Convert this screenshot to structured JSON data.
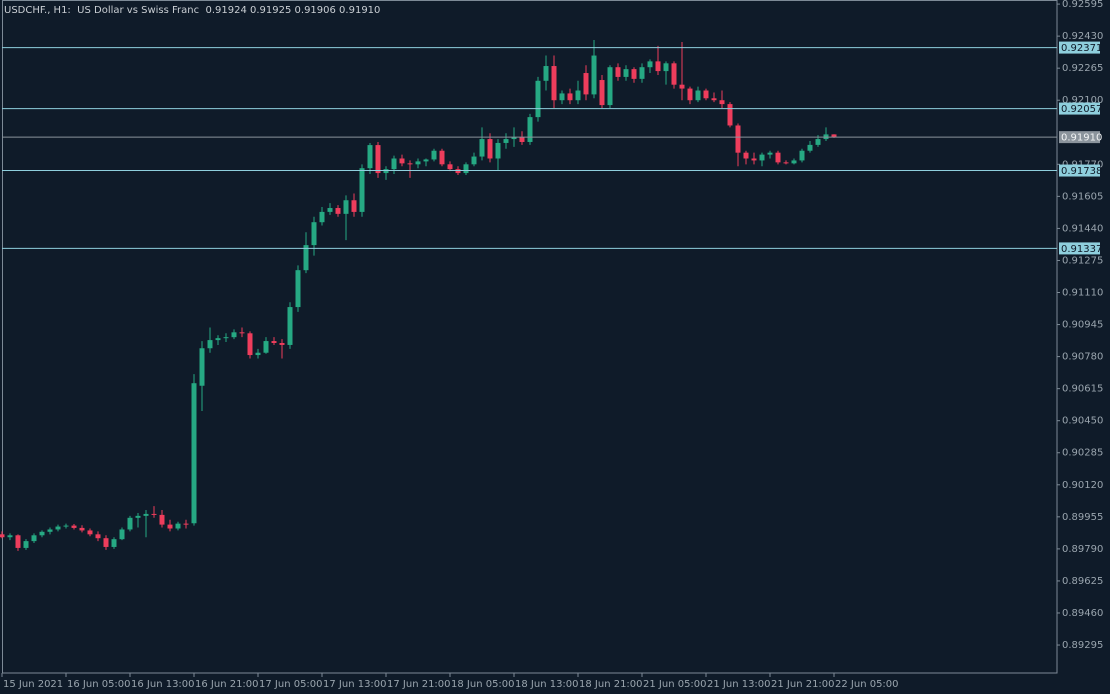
{
  "chart_data": {
    "type": "candlestick",
    "title": "USDCHF., H1:  US Dollar vs Swiss Franc  0.91924 0.91925 0.91906 0.91910",
    "categories": [
      "15 Jun 2021",
      null,
      null,
      null,
      null,
      null,
      null,
      null,
      "16 Jun 05:00",
      null,
      null,
      null,
      null,
      null,
      null,
      null,
      "16 Jun 13:00",
      null,
      null,
      null,
      null,
      null,
      null,
      null,
      "16 Jun 21:00",
      null,
      null,
      null,
      null,
      null,
      null,
      null,
      "17 Jun 05:00",
      null,
      null,
      null,
      null,
      null,
      null,
      null,
      "17 Jun 13:00",
      null,
      null,
      null,
      null,
      null,
      null,
      null,
      "17 Jun 21:00",
      null,
      null,
      null,
      null,
      null,
      null,
      null,
      "18 Jun 05:00",
      null,
      null,
      null,
      null,
      null,
      null,
      null,
      "18 Jun 13:00",
      null,
      null,
      null,
      null,
      null,
      null,
      null,
      "18 Jun 21:00",
      null,
      null,
      null,
      null,
      null,
      null,
      null,
      "21 Jun 05:00",
      null,
      null,
      null,
      null,
      null,
      null,
      null,
      "21 Jun 13:00",
      null,
      null,
      null,
      null,
      null,
      null,
      null,
      "21 Jun 21:00",
      null,
      null,
      null,
      null,
      null,
      null,
      null,
      "22 Jun 05:00"
    ],
    "open": [
      0.89865,
      0.8985,
      0.8986,
      0.89795,
      0.8983,
      0.8986,
      0.89878,
      0.8989,
      0.89905,
      0.8991,
      0.89898,
      0.89885,
      0.89865,
      0.89845,
      0.898,
      0.8984,
      0.8989,
      0.8995,
      0.8996,
      0.8997,
      0.89965,
      0.89915,
      0.89895,
      0.8992,
      0.89922,
      0.9063,
      0.90823,
      0.90865,
      0.90875,
      0.9088,
      0.90905,
      0.909,
      0.90788,
      0.908,
      0.9086,
      0.9085,
      0.9084,
      0.91035,
      0.91225,
      0.91354,
      0.91472,
      0.91525,
      0.91545,
      0.91515,
      0.91585,
      0.91525,
      0.9175,
      0.91869,
      0.91725,
      0.91745,
      0.918,
      0.91775,
      0.9177,
      0.91785,
      0.91795,
      0.9184,
      0.9177,
      0.91745,
      0.91725,
      0.9177,
      0.9181,
      0.919,
      0.918,
      0.9188,
      0.919,
      0.9191,
      0.91885,
      0.92013,
      0.922,
      0.92276,
      0.921,
      0.92135,
      0.921,
      0.9224,
      0.9213,
      0.92204,
      0.92075,
      0.9227,
      0.9222,
      0.9226,
      0.9221,
      0.9227,
      0.923,
      0.9225,
      0.9229,
      0.9218,
      0.9216,
      0.921,
      0.9215,
      0.9211,
      0.921,
      0.9208,
      0.9197,
      0.9183,
      0.918,
      0.9179,
      0.9182,
      0.9183,
      0.9178,
      0.91775,
      0.9179,
      0.9184,
      0.9187,
      0.919,
      0.91924
    ],
    "high": [
      0.8988,
      0.8987,
      0.89865,
      0.8984,
      0.8987,
      0.89885,
      0.899,
      0.89915,
      0.8992,
      0.89918,
      0.89912,
      0.89895,
      0.8988,
      0.8986,
      0.8985,
      0.899,
      0.8996,
      0.89975,
      0.8999,
      0.9001,
      0.8999,
      0.8994,
      0.8993,
      0.8994,
      0.9069,
      0.9086,
      0.9093,
      0.9089,
      0.909,
      0.9092,
      0.9093,
      0.9091,
      0.9082,
      0.9088,
      0.9088,
      0.9087,
      0.9106,
      0.9125,
      0.9142,
      0.915,
      0.9155,
      0.9157,
      0.9156,
      0.9161,
      0.9162,
      0.9177,
      0.9188,
      0.91885,
      0.9176,
      0.91815,
      0.9182,
      0.9179,
      0.918,
      0.918,
      0.9185,
      0.9185,
      0.91785,
      0.9176,
      0.9178,
      0.9183,
      0.9196,
      0.9193,
      0.919,
      0.9193,
      0.9196,
      0.9194,
      0.9203,
      0.9222,
      0.9233,
      0.9233,
      0.9215,
      0.9216,
      0.922,
      0.9228,
      0.9241,
      0.9223,
      0.9228,
      0.9229,
      0.9228,
      0.9227,
      0.9229,
      0.9231,
      0.9238,
      0.923,
      0.923,
      0.924,
      0.9217,
      0.9217,
      0.9216,
      0.9214,
      0.9215,
      0.9209,
      0.9198,
      0.9184,
      0.9183,
      0.9183,
      0.9184,
      0.9184,
      0.9179,
      0.918,
      0.9185,
      0.9189,
      0.9192,
      0.9196,
      0.91925
    ],
    "low": [
      0.89845,
      0.89835,
      0.8978,
      0.89785,
      0.8982,
      0.8985,
      0.89865,
      0.8988,
      0.89895,
      0.8989,
      0.89875,
      0.89855,
      0.8983,
      0.89785,
      0.8979,
      0.89835,
      0.8988,
      0.899,
      0.8985,
      0.8995,
      0.899,
      0.8988,
      0.89885,
      0.89895,
      0.8991,
      0.905,
      0.908,
      0.9084,
      0.90855,
      0.9087,
      0.9088,
      0.9077,
      0.9077,
      0.90795,
      0.9084,
      0.9077,
      0.9082,
      0.9101,
      0.9121,
      0.913,
      0.91455,
      0.9151,
      0.915,
      0.9138,
      0.915,
      0.915,
      0.9172,
      0.917,
      0.9169,
      0.9172,
      0.9176,
      0.917,
      0.9175,
      0.9176,
      0.91785,
      0.9176,
      0.91735,
      0.91715,
      0.91715,
      0.9176,
      0.9179,
      0.9178,
      0.9174,
      0.9185,
      0.9186,
      0.9187,
      0.9187,
      0.9199,
      0.9215,
      0.9206,
      0.9208,
      0.9208,
      0.9208,
      0.921,
      0.9211,
      0.9206,
      0.9206,
      0.922,
      0.922,
      0.9219,
      0.9219,
      0.9224,
      0.9223,
      0.9218,
      0.9216,
      0.921,
      0.9208,
      0.9209,
      0.921,
      0.9209,
      0.9206,
      0.9196,
      0.9176,
      0.9177,
      0.9177,
      0.9176,
      0.918,
      0.9177,
      0.9177,
      0.9177,
      0.9178,
      0.9183,
      0.9186,
      0.9189,
      0.91906
    ],
    "close": [
      0.8985,
      0.8986,
      0.89795,
      0.8983,
      0.8986,
      0.89878,
      0.8989,
      0.89905,
      0.8991,
      0.89898,
      0.89885,
      0.89865,
      0.89845,
      0.898,
      0.8984,
      0.8989,
      0.8995,
      0.8996,
      0.8997,
      0.89965,
      0.89915,
      0.89895,
      0.8992,
      0.89915,
      0.90643,
      0.90823,
      0.90865,
      0.90875,
      0.9088,
      0.90905,
      0.909,
      0.90788,
      0.908,
      0.9086,
      0.9085,
      0.9084,
      0.91035,
      0.91225,
      0.91354,
      0.91472,
      0.91525,
      0.91545,
      0.91515,
      0.91585,
      0.91525,
      0.9175,
      0.91869,
      0.91725,
      0.91745,
      0.918,
      0.91775,
      0.9177,
      0.91785,
      0.91795,
      0.9184,
      0.9177,
      0.91745,
      0.91725,
      0.9177,
      0.9181,
      0.919,
      0.918,
      0.9188,
      0.919,
      0.9191,
      0.91885,
      0.92013,
      0.922,
      0.92276,
      0.921,
      0.92135,
      0.921,
      0.9215,
      0.9213,
      0.9233,
      0.92075,
      0.9227,
      0.9222,
      0.9226,
      0.9221,
      0.9227,
      0.923,
      0.9225,
      0.9229,
      0.9218,
      0.9216,
      0.921,
      0.9215,
      0.9211,
      0.921,
      0.9208,
      0.9197,
      0.9183,
      0.918,
      0.9179,
      0.9182,
      0.9183,
      0.9178,
      0.91775,
      0.9179,
      0.9184,
      0.9187,
      0.919,
      0.91924,
      0.9191
    ],
    "ylim": [
      0.89151,
      0.92616
    ],
    "yticks": [
      0.92595,
      {
        "value": 0.9243,
        "label": "0.92430"
      },
      0.92265,
      {
        "value": 0.921,
        "label": "0.92100"
      },
      {
        "value": 0.9177,
        "label": "0.91770"
      },
      0.91605,
      {
        "value": 0.9144,
        "label": "0.91440"
      },
      0.91275,
      {
        "value": 0.9111,
        "label": "0.91110"
      },
      0.90945,
      {
        "value": 0.9078,
        "label": "0.90780"
      },
      0.90615,
      {
        "value": 0.9045,
        "label": "0.90450"
      },
      0.90285,
      {
        "value": 0.9012,
        "label": "0.90120"
      },
      0.89955,
      {
        "value": 0.8979,
        "label": "0.89790"
      },
      0.89625,
      {
        "value": 0.8946,
        "label": "0.89460"
      },
      0.89295
    ],
    "levels": [
      0.92371,
      0.92057,
      0.91738,
      0.91337
    ],
    "current": {
      "value": 0.9191,
      "label": "0.91910"
    },
    "colors": {
      "up": "#26a983",
      "down": "#ee3d5c",
      "level": "#8fcfdd",
      "current": "#8b949c"
    }
  }
}
